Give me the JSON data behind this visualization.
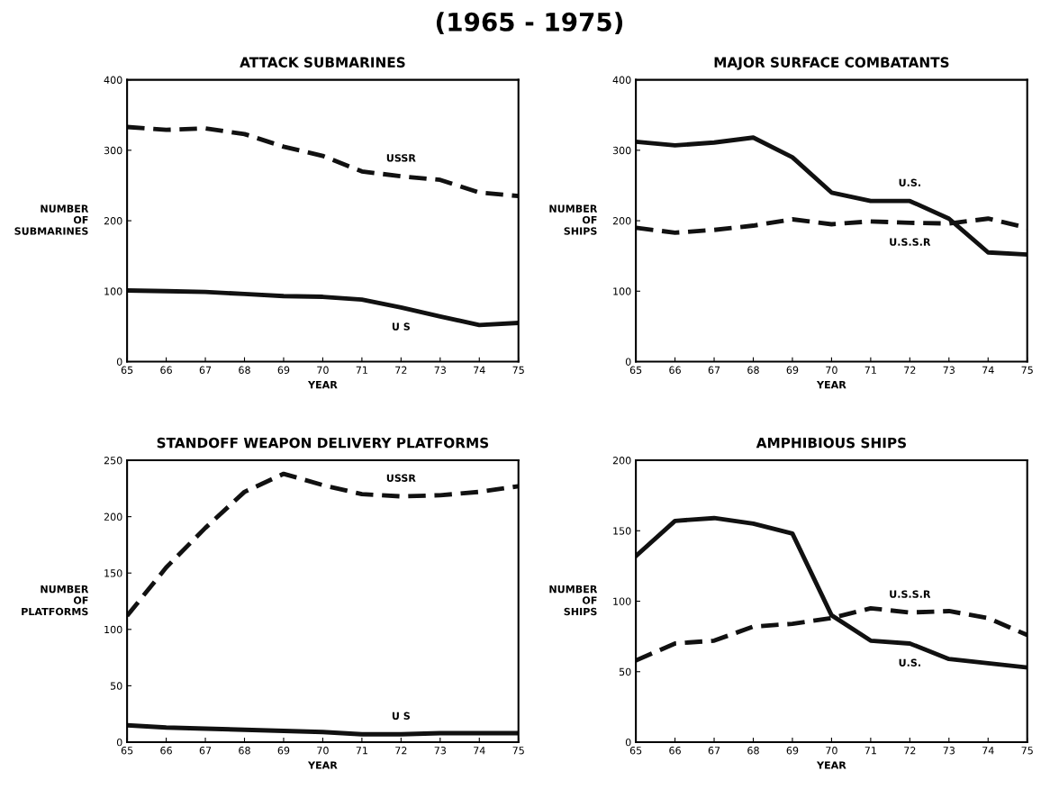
{
  "chart_data": [
    {
      "type": "other",
      "title": "(1965 - 1975)"
    },
    {
      "type": "line",
      "title": "ATTACK SUBMARINES",
      "xlabel": "YEAR",
      "ylabel": "NUMBER\nOF\nSUBMARINES",
      "x": [
        65,
        66,
        67,
        68,
        69,
        70,
        71,
        72,
        73,
        74,
        75
      ],
      "xlim": [
        65,
        75
      ],
      "xticks": [
        65,
        66,
        67,
        68,
        69,
        70,
        71,
        72,
        73,
        74,
        75
      ],
      "ylim": [
        0,
        400
      ],
      "yticks": [
        0,
        100,
        200,
        300,
        400
      ],
      "grid": false,
      "legend": false,
      "series": [
        {
          "name": "USSR",
          "color": "#111111",
          "line_style": "dashed",
          "values": [
            333,
            329,
            331,
            323,
            305,
            292,
            270,
            263,
            258,
            240,
            235
          ]
        },
        {
          "name": "U S",
          "color": "#111111",
          "line_style": "solid",
          "values": [
            101,
            100,
            99,
            96,
            93,
            92,
            88,
            77,
            64,
            52,
            55
          ]
        }
      ]
    },
    {
      "type": "line",
      "title": "MAJOR SURFACE COMBATANTS",
      "xlabel": "YEAR",
      "ylabel": "NUMBER\nOF\nSHIPS",
      "x": [
        65,
        66,
        67,
        68,
        69,
        70,
        71,
        72,
        73,
        74,
        75
      ],
      "xlim": [
        65,
        75
      ],
      "xticks": [
        65,
        66,
        67,
        68,
        69,
        70,
        71,
        72,
        73,
        74,
        75
      ],
      "ylim": [
        0,
        400
      ],
      "yticks": [
        0,
        100,
        200,
        300,
        400
      ],
      "grid": false,
      "legend": false,
      "series": [
        {
          "name": "U.S.",
          "color": "#111111",
          "line_style": "solid",
          "values": [
            312,
            307,
            311,
            318,
            290,
            240,
            228,
            228,
            203,
            155,
            152
          ]
        },
        {
          "name": "U.S.S.R",
          "color": "#111111",
          "line_style": "dashed",
          "values": [
            190,
            183,
            187,
            193,
            202,
            195,
            199,
            197,
            196,
            203,
            190
          ]
        }
      ]
    },
    {
      "type": "line",
      "title": "STANDOFF WEAPON DELIVERY PLATFORMS",
      "xlabel": "YEAR",
      "ylabel": "NUMBER\nOF\nPLATFORMS",
      "x": [
        65,
        66,
        67,
        68,
        69,
        70,
        71,
        72,
        73,
        74,
        75
      ],
      "xlim": [
        65,
        75
      ],
      "xticks": [
        65,
        66,
        67,
        68,
        69,
        70,
        71,
        72,
        73,
        74,
        75
      ],
      "ylim": [
        0,
        250
      ],
      "yticks": [
        0,
        50,
        100,
        150,
        200,
        250
      ],
      "grid": false,
      "legend": false,
      "series": [
        {
          "name": "USSR",
          "color": "#111111",
          "line_style": "dashed",
          "values": [
            112,
            155,
            190,
            222,
            238,
            228,
            220,
            218,
            219,
            222,
            227
          ]
        },
        {
          "name": "U S",
          "color": "#111111",
          "line_style": "solid",
          "values": [
            15,
            13,
            12,
            11,
            10,
            9,
            7,
            7,
            8,
            8,
            8
          ]
        }
      ]
    },
    {
      "type": "line",
      "title": "AMPHIBIOUS SHIPS",
      "xlabel": "YEAR",
      "ylabel": "NUMBER\nOF\nSHIPS",
      "x": [
        65,
        66,
        67,
        68,
        69,
        70,
        71,
        72,
        73,
        74,
        75
      ],
      "xlim": [
        65,
        75
      ],
      "xticks": [
        65,
        66,
        67,
        68,
        69,
        70,
        71,
        72,
        73,
        74,
        75
      ],
      "ylim": [
        0,
        200
      ],
      "yticks": [
        0,
        50,
        100,
        150,
        200
      ],
      "grid": false,
      "legend": false,
      "series": [
        {
          "name": "U.S.",
          "color": "#111111",
          "line_style": "solid",
          "values": [
            132,
            157,
            159,
            155,
            148,
            90,
            72,
            70,
            59,
            56,
            53
          ]
        },
        {
          "name": "U.S.S.R",
          "color": "#111111",
          "line_style": "dashed",
          "values": [
            58,
            70,
            72,
            82,
            84,
            88,
            95,
            92,
            93,
            88,
            76
          ]
        }
      ]
    }
  ]
}
